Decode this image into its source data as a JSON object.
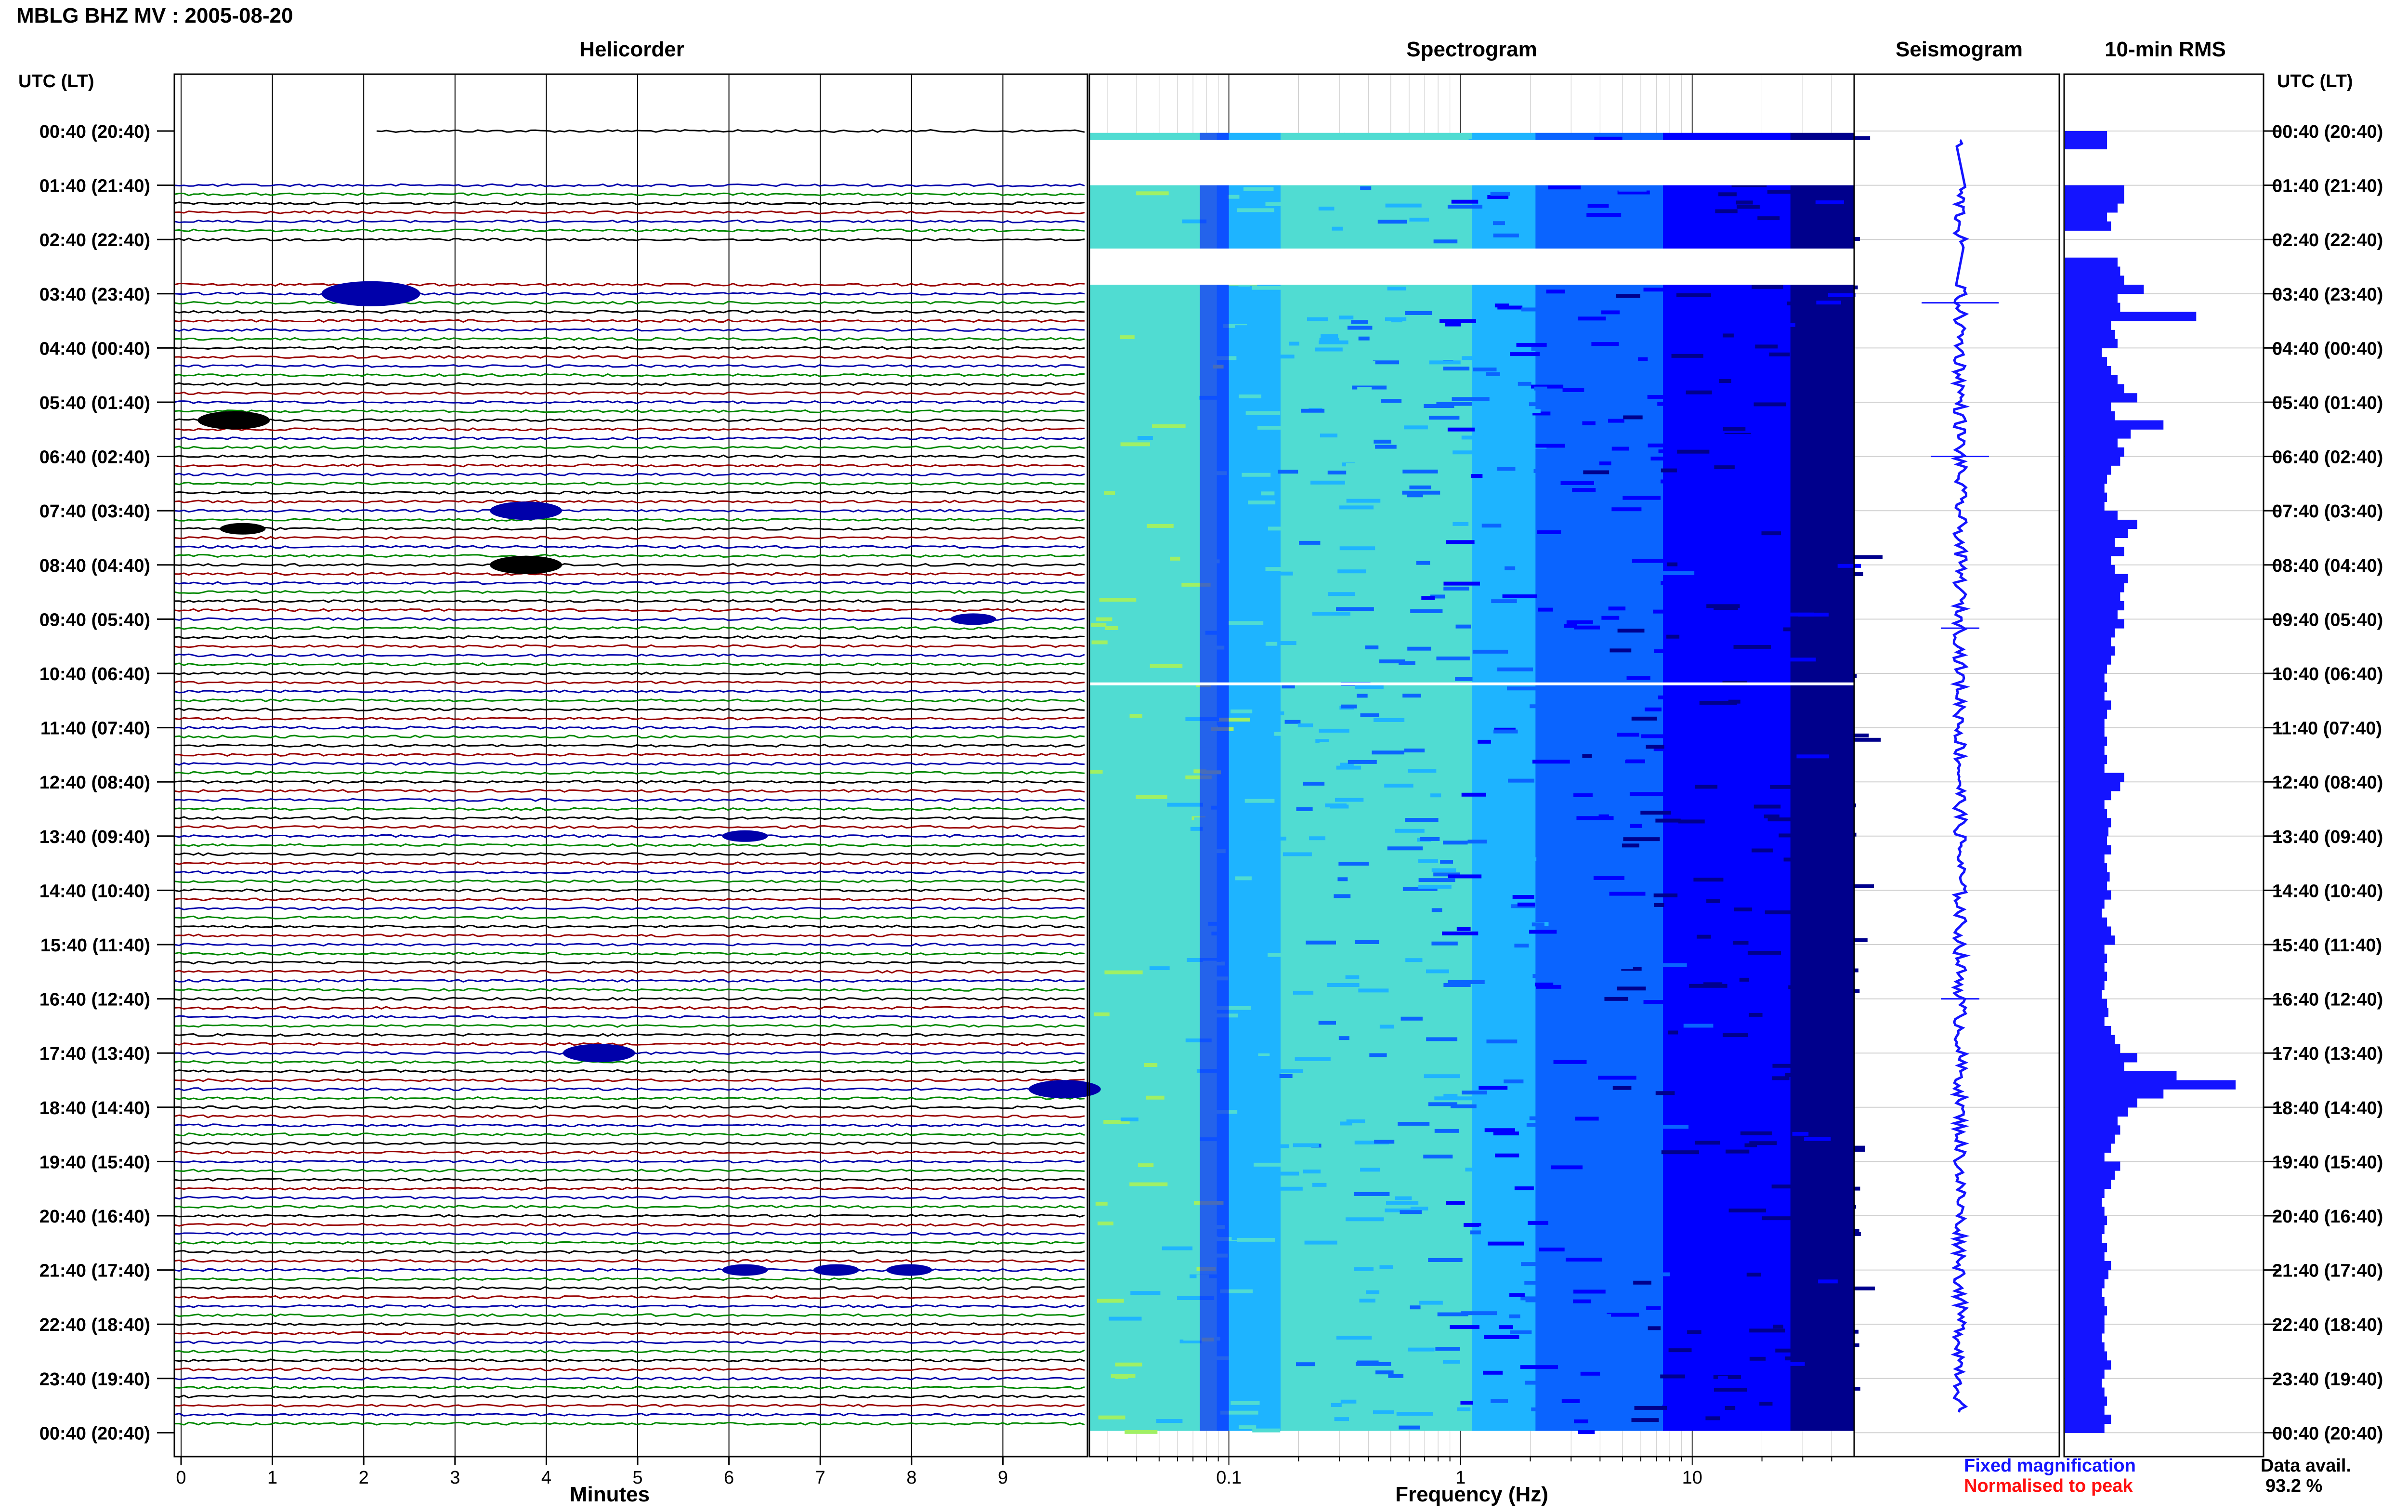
{
  "header": {
    "title": "MBLG BHZ MV : 2005-08-20",
    "helicorder": "Helicorder",
    "spectrogram": "Spectrogram",
    "seismogram": "Seismogram",
    "rms": "10-min RMS",
    "utc_left": "UTC (LT)",
    "utc_right": "UTC (LT)"
  },
  "legend": {
    "fixed": "Fixed magnification",
    "normalised": "Normalised to peak",
    "fixed_color": "#1414ff",
    "normalised_color": "#ff1010"
  },
  "availability": {
    "label": "Data avail.",
    "value": "93.2 %"
  },
  "time_labels": [
    "00:40 (20:40)",
    "01:40 (21:40)",
    "02:40 (22:40)",
    "03:40 (23:40)",
    "04:40 (00:40)",
    "05:40 (01:40)",
    "06:40 (02:40)",
    "07:40 (03:40)",
    "08:40 (04:40)",
    "09:40 (05:40)",
    "10:40 (06:40)",
    "11:40 (07:40)",
    "12:40 (08:40)",
    "13:40 (09:40)",
    "14:40 (10:40)",
    "15:40 (11:40)",
    "16:40 (12:40)",
    "17:40 (13:40)",
    "18:40 (14:40)",
    "19:40 (15:40)",
    "20:40 (16:40)",
    "21:40 (17:40)",
    "22:40 (18:40)",
    "23:40 (19:40)",
    "00:40 (20:40)"
  ],
  "chart_data": [
    {
      "type": "line",
      "panel": "Helicorder",
      "xlabel": "Minutes",
      "x_ticks": [
        "0",
        "1",
        "2",
        "3",
        "4",
        "5",
        "6",
        "7",
        "8",
        "9"
      ],
      "xlim": [
        0,
        10
      ],
      "trace_colors": [
        "#000000",
        "#990000",
        "#0000aa",
        "#008800"
      ],
      "events": [
        {
          "time": "03:40",
          "minute": 1.7,
          "size": 3
        },
        {
          "time": "06:00",
          "minute": 0.3,
          "size": 2
        },
        {
          "time": "07:40",
          "minute": 3.5,
          "size": 2
        },
        {
          "time": "08:00",
          "minute": 0.5,
          "size": 1
        },
        {
          "time": "08:40",
          "minute": 3.5,
          "size": 2
        },
        {
          "time": "09:40",
          "minute": 8.5,
          "size": 1
        },
        {
          "time": "13:40",
          "minute": 6.0,
          "size": 1
        },
        {
          "time": "17:40",
          "minute": 4.3,
          "size": 2
        },
        {
          "time": "18:20",
          "minute": 9.4,
          "size": 2
        },
        {
          "time": "21:40",
          "minute": 6.0,
          "size": 1
        },
        {
          "time": "21:40",
          "minute": 7.0,
          "size": 1
        },
        {
          "time": "21:40",
          "minute": 7.8,
          "size": 1
        }
      ]
    },
    {
      "type": "heatmap",
      "panel": "Spectrogram",
      "xlabel": "Frequency (Hz)",
      "x_scale": "log",
      "xlim": [
        0.025,
        50
      ],
      "x_ticks": [
        "0.1",
        "1",
        "10"
      ],
      "colormap": [
        "#00008c",
        "#0000ff",
        "#0a64ff",
        "#1eb4ff",
        "#50dcd2",
        "#a0f064"
      ],
      "gaps": [
        [
          "00:50",
          "01:40"
        ],
        [
          "02:50",
          "03:30"
        ],
        [
          "10:50",
          "10:52"
        ]
      ]
    },
    {
      "type": "line",
      "panel": "Seismogram",
      "color": "#1414ff"
    },
    {
      "type": "bar",
      "panel": "10-min RMS",
      "orientation": "horizontal",
      "color": "#1414ff",
      "interval_minutes": 10,
      "start": "00:40",
      "values": [
        0.32,
        0.32,
        0.0,
        0.0,
        0.0,
        0.0,
        0.45,
        0.45,
        0.4,
        0.32,
        0.35,
        0.0,
        0.0,
        0.0,
        0.4,
        0.42,
        0.45,
        0.6,
        0.4,
        0.42,
        1.0,
        0.35,
        0.38,
        0.4,
        0.28,
        0.32,
        0.35,
        0.4,
        0.45,
        0.55,
        0.35,
        0.38,
        0.75,
        0.5,
        0.4,
        0.45,
        0.42,
        0.35,
        0.32,
        0.3,
        0.32,
        0.3,
        0.4,
        0.55,
        0.48,
        0.38,
        0.45,
        0.35,
        0.38,
        0.48,
        0.45,
        0.42,
        0.45,
        0.4,
        0.45,
        0.38,
        0.35,
        0.38,
        0.35,
        0.32,
        0.3,
        0.32,
        0.3,
        0.35,
        0.32,
        0.3,
        0.3,
        0.32,
        0.3,
        0.32,
        0.3,
        0.45,
        0.42,
        0.35,
        0.3,
        0.32,
        0.35,
        0.33,
        0.32,
        0.35,
        0.3,
        0.32,
        0.34,
        0.32,
        0.35,
        0.3,
        0.28,
        0.32,
        0.35,
        0.38,
        0.3,
        0.32,
        0.3,
        0.32,
        0.3,
        0.28,
        0.32,
        0.33,
        0.3,
        0.35,
        0.38,
        0.42,
        0.55,
        0.45,
        0.85,
        1.3,
        0.75,
        0.55,
        0.48,
        0.4,
        0.42,
        0.38,
        0.35,
        0.3,
        0.42,
        0.38,
        0.35,
        0.3,
        0.28,
        0.3,
        0.32,
        0.3,
        0.28,
        0.32,
        0.3,
        0.35,
        0.33,
        0.3,
        0.28,
        0.3,
        0.32,
        0.3,
        0.3,
        0.28,
        0.3,
        0.32,
        0.35,
        0.3,
        0.28,
        0.3,
        0.32,
        0.3,
        0.35,
        0.3
      ]
    }
  ]
}
